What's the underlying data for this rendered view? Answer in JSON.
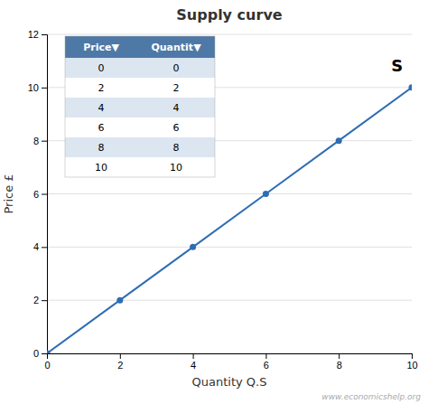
{
  "chart_data": {
    "type": "line",
    "title": "Supply curve",
    "xlabel": "Quantity Q.S",
    "ylabel": "Price £",
    "x": [
      0,
      2,
      4,
      6,
      8,
      10
    ],
    "values": [
      0,
      2,
      4,
      6,
      8,
      10
    ],
    "color": "#2E6DB4",
    "marker": "circle",
    "xlim": [
      0,
      10
    ],
    "ylim": [
      0,
      12
    ],
    "xticks": [
      0,
      2,
      4,
      6,
      8,
      10
    ],
    "yticks": [
      0,
      2,
      4,
      6,
      8,
      10,
      12
    ],
    "grid": "y",
    "annotations": [
      {
        "text": "S",
        "x": 9.6,
        "y": 10.6
      }
    ],
    "watermark": "www.economicshelp.org",
    "table": {
      "header": [
        "Price▼",
        "Quantit▼"
      ],
      "rows": [
        [
          "0",
          "0"
        ],
        [
          "2",
          "2"
        ],
        [
          "4",
          "4"
        ],
        [
          "6",
          "6"
        ],
        [
          "8",
          "8"
        ],
        [
          "10",
          "10"
        ]
      ]
    }
  }
}
